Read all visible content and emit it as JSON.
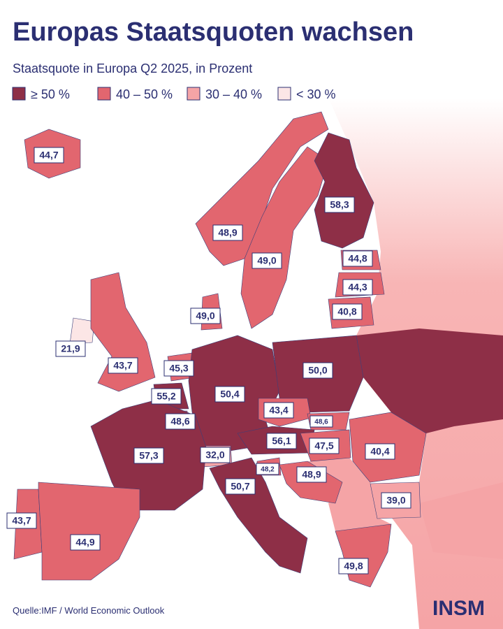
{
  "header": {
    "title": "Europas Staatsquoten wachsen",
    "subtitle": "Staatsquote in Europa Q2 2025, in Prozent"
  },
  "legend": [
    {
      "label": "≥ 50 %",
      "color": "#8e2f47"
    },
    {
      "label": "40 – 50 %",
      "color": "#e2666f"
    },
    {
      "label": "30 – 40 %",
      "color": "#f5a4a6"
    },
    {
      "label": "< 30 %",
      "color": "#fce6e6"
    }
  ],
  "regions": [
    "44,7",
    "48,9",
    "49,0",
    "58,3",
    "44,8",
    "44,3",
    "40,8",
    "49,0",
    "21,9",
    "43,7",
    "45,3",
    "55,2",
    "48,6",
    "50,4",
    "50,0",
    "43,4",
    "48,6",
    "56,1",
    "47,5",
    "40,4",
    "32,0",
    "48,2",
    "48,9",
    "39,0",
    "57,3",
    "50,7",
    "43,7",
    "44,9",
    "49,8"
  ],
  "footer": {
    "source": "Quelle:IMF / World Economic Outlook",
    "logo": "INSM"
  }
}
